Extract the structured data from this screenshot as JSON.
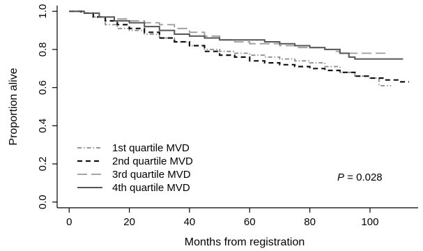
{
  "chart_data": {
    "type": "line",
    "xlabel": "Months from registration",
    "ylabel": "Proportion alive",
    "xlim": [
      -4,
      116
    ],
    "ylim": [
      -0.03,
      1.03
    ],
    "x_ticks": [
      0,
      20,
      40,
      60,
      80,
      100
    ],
    "y_ticks": [
      0.0,
      0.2,
      0.4,
      0.6,
      0.8,
      1.0
    ],
    "x_tick_labels": [
      "0",
      "20",
      "40",
      "60",
      "80",
      "100"
    ],
    "y_tick_labels": [
      "0.0",
      "0.2",
      "0.4",
      "0.6",
      "0.8",
      "1.0"
    ],
    "grid": false,
    "legend_position": "bottom-left",
    "annotation": {
      "p_label": "P",
      "p_value": " = 0.028"
    },
    "series": [
      {
        "name": "1st quartile MVD",
        "style": "dash-dot",
        "color": "#8a8a8a",
        "points": [
          [
            0,
            1.0
          ],
          [
            5,
            0.99
          ],
          [
            8,
            0.97
          ],
          [
            12,
            0.93
          ],
          [
            16,
            0.91
          ],
          [
            20,
            0.9
          ],
          [
            25,
            0.88
          ],
          [
            30,
            0.86
          ],
          [
            35,
            0.84
          ],
          [
            40,
            0.82
          ],
          [
            45,
            0.8
          ],
          [
            50,
            0.79
          ],
          [
            55,
            0.78
          ],
          [
            60,
            0.77
          ],
          [
            65,
            0.76
          ],
          [
            70,
            0.75
          ],
          [
            75,
            0.74
          ],
          [
            80,
            0.73
          ],
          [
            85,
            0.71
          ],
          [
            90,
            0.68
          ],
          [
            95,
            0.66
          ],
          [
            100,
            0.65
          ],
          [
            103,
            0.61
          ],
          [
            107,
            0.61
          ]
        ]
      },
      {
        "name": "2nd quartile MVD",
        "style": "dashed",
        "color": "#111111",
        "points": [
          [
            0,
            1.0
          ],
          [
            4,
            0.99
          ],
          [
            8,
            0.97
          ],
          [
            12,
            0.95
          ],
          [
            16,
            0.93
          ],
          [
            20,
            0.91
          ],
          [
            25,
            0.89
          ],
          [
            30,
            0.86
          ],
          [
            35,
            0.84
          ],
          [
            40,
            0.82
          ],
          [
            45,
            0.79
          ],
          [
            50,
            0.77
          ],
          [
            55,
            0.76
          ],
          [
            60,
            0.74
          ],
          [
            65,
            0.73
          ],
          [
            70,
            0.72
          ],
          [
            75,
            0.71
          ],
          [
            80,
            0.7
          ],
          [
            85,
            0.69
          ],
          [
            90,
            0.68
          ],
          [
            95,
            0.66
          ],
          [
            100,
            0.65
          ],
          [
            105,
            0.64
          ],
          [
            110,
            0.63
          ],
          [
            113,
            0.63
          ]
        ]
      },
      {
        "name": "3rd quartile MVD",
        "style": "long-dash",
        "color": "#9a9a9a",
        "points": [
          [
            0,
            1.0
          ],
          [
            5,
            0.99
          ],
          [
            10,
            0.97
          ],
          [
            15,
            0.96
          ],
          [
            20,
            0.95
          ],
          [
            25,
            0.94
          ],
          [
            30,
            0.93
          ],
          [
            35,
            0.91
          ],
          [
            40,
            0.89
          ],
          [
            45,
            0.87
          ],
          [
            50,
            0.85
          ],
          [
            55,
            0.84
          ],
          [
            60,
            0.83
          ],
          [
            65,
            0.83
          ],
          [
            70,
            0.82
          ],
          [
            75,
            0.81
          ],
          [
            80,
            0.81
          ],
          [
            85,
            0.8
          ],
          [
            88,
            0.79
          ],
          [
            90,
            0.78
          ],
          [
            95,
            0.78
          ],
          [
            100,
            0.78
          ],
          [
            106,
            0.78
          ]
        ]
      },
      {
        "name": "4th quartile MVD",
        "style": "solid",
        "color": "#555555",
        "points": [
          [
            0,
            1.0
          ],
          [
            5,
            0.99
          ],
          [
            10,
            0.97
          ],
          [
            15,
            0.95
          ],
          [
            20,
            0.94
          ],
          [
            25,
            0.92
          ],
          [
            30,
            0.9
          ],
          [
            35,
            0.88
          ],
          [
            40,
            0.87
          ],
          [
            45,
            0.86
          ],
          [
            50,
            0.85
          ],
          [
            55,
            0.85
          ],
          [
            60,
            0.85
          ],
          [
            65,
            0.84
          ],
          [
            70,
            0.83
          ],
          [
            75,
            0.82
          ],
          [
            80,
            0.81
          ],
          [
            85,
            0.8
          ],
          [
            90,
            0.78
          ],
          [
            93,
            0.76
          ],
          [
            95,
            0.75
          ],
          [
            100,
            0.75
          ],
          [
            105,
            0.75
          ],
          [
            111,
            0.75
          ]
        ]
      }
    ]
  }
}
